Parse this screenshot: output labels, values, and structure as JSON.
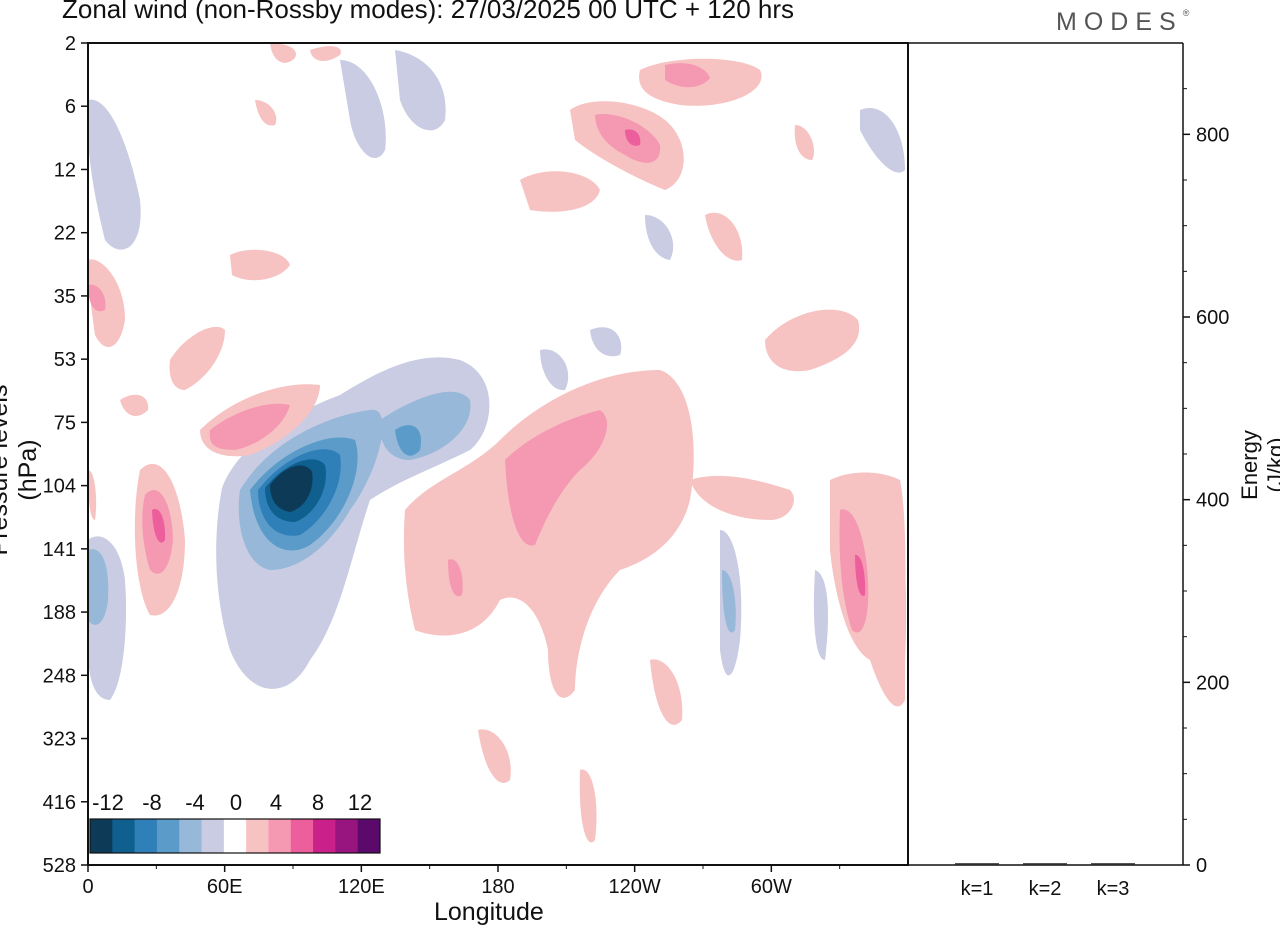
{
  "title": "Zonal wind (non-Rossby modes):  27/03/2025  00 UTC  + 120 hrs",
  "brand": "MODES",
  "brand_mark": "®",
  "chart_data": [
    {
      "type": "heatmap",
      "xlabel": "Longitude",
      "ylabel": "Pressure levels (hPa)",
      "x_ticks": [
        "0",
        "60E",
        "120E",
        "180",
        "120W",
        "60W"
      ],
      "y_ticks": [
        "2",
        "6",
        "12",
        "22",
        "35",
        "53",
        "75",
        "104",
        "141",
        "188",
        "248",
        "323",
        "416",
        "528"
      ],
      "xlim": [
        0,
        360
      ],
      "colorbar": {
        "labels": [
          "-12",
          "-8",
          "-4",
          "0",
          "4",
          "8",
          "12"
        ],
        "levels": [
          -14,
          -12,
          -10,
          -8,
          -6,
          -4,
          -2,
          2,
          4,
          6,
          8,
          10,
          12,
          14
        ],
        "colors": [
          "#0d3a57",
          "#0f5f8f",
          "#2f7fb8",
          "#5b9bc9",
          "#97b8d8",
          "#c9cce2",
          "#ffffff",
          "#f6c3c2",
          "#f599b3",
          "#ec5f9c",
          "#c9208a",
          "#981580",
          "#5b0a6b"
        ]
      },
      "features": [
        {
          "lon": 88,
          "level": 115,
          "u": -14
        },
        {
          "lon": 118,
          "level": 70,
          "u": -3
        },
        {
          "lon": 30,
          "level": 125,
          "u": 9
        },
        {
          "lon": 328,
          "level": 175,
          "u": 9
        },
        {
          "lon": 235,
          "level": 8,
          "u": 8
        },
        {
          "lon": 200,
          "level": 110,
          "u": 6
        },
        {
          "lon": 80,
          "level": 78,
          "u": 6
        },
        {
          "lon": 0,
          "level": 160,
          "u": -4
        }
      ]
    },
    {
      "type": "bar",
      "categories": [
        "k=1",
        "k=2",
        "k=3"
      ],
      "values": [
        1,
        1,
        1
      ],
      "ylabel": "Energy (J/kg)",
      "y_ticks": [
        "0",
        "200",
        "400",
        "600",
        "800"
      ],
      "ylim": [
        0,
        900
      ]
    }
  ]
}
